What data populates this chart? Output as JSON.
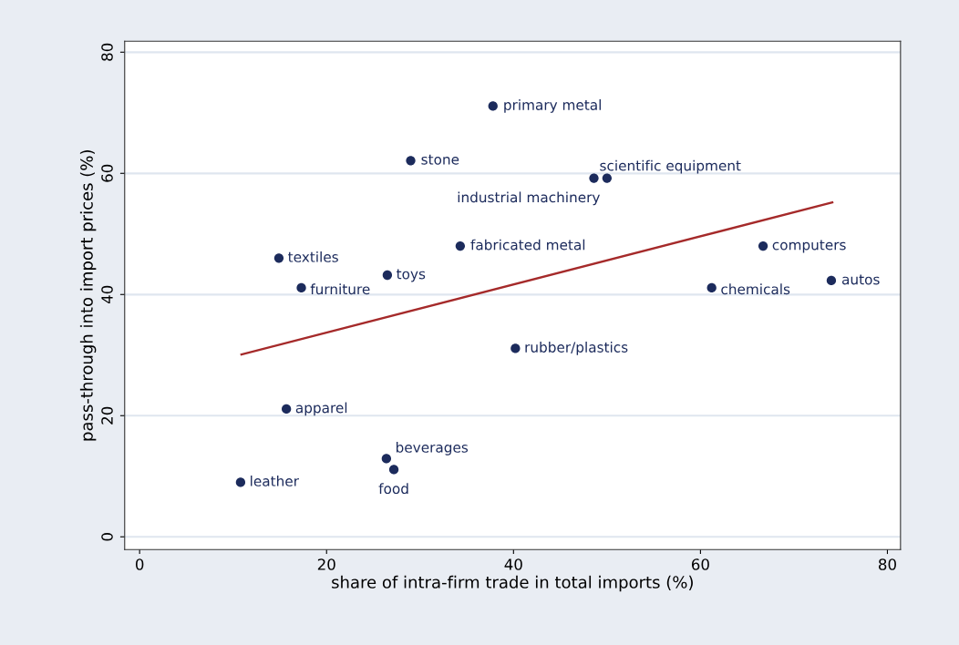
{
  "chart_data": {
    "type": "scatter",
    "xlabel": "share of intra-firm trade in total imports (%)",
    "ylabel": "pass-through into import prices (%)",
    "xlim": [
      -1.6,
      81.4
    ],
    "ylim": [
      -2.1,
      81.8
    ],
    "xticks": [
      0,
      20,
      40,
      60,
      80
    ],
    "yticks": [
      0,
      20,
      40,
      60,
      80
    ],
    "grid": "y",
    "marker": "circle",
    "series": [
      {
        "color": "#1c2b5c",
        "x": [
          37.8,
          29.0,
          48.6,
          50.0,
          34.3,
          14.9,
          26.5,
          17.3,
          66.7,
          61.2,
          74.0,
          40.2,
          15.7,
          26.4,
          27.2,
          10.8
        ],
        "values": [
          71.1,
          62.1,
          59.2,
          59.2,
          48.0,
          46.0,
          43.2,
          41.1,
          48.0,
          41.1,
          42.3,
          31.1,
          21.1,
          12.9,
          11.1,
          9.0
        ]
      },
      {
        "type": "line",
        "color": "#a52a2a",
        "marker": "none",
        "line_style": "solid",
        "x": [
          10.9,
          74.1
        ],
        "values": [
          30.1,
          55.2
        ]
      }
    ],
    "annotations": [
      {
        "text": "primary metal",
        "x": 37.8,
        "y": 71.1
      },
      {
        "text": "stone",
        "x": 29.0,
        "y": 62.1
      },
      {
        "text": "industrial machinery",
        "x": 48.6,
        "y": 59.2
      },
      {
        "text": "scientific equipment",
        "x": 50.0,
        "y": 59.2
      },
      {
        "text": "fabricated metal",
        "x": 34.3,
        "y": 48.0
      },
      {
        "text": "textiles",
        "x": 14.9,
        "y": 46.0
      },
      {
        "text": "toys",
        "x": 26.5,
        "y": 43.2
      },
      {
        "text": "furniture",
        "x": 17.3,
        "y": 41.1
      },
      {
        "text": "computers",
        "x": 66.7,
        "y": 48.0
      },
      {
        "text": "chemicals",
        "x": 61.2,
        "y": 41.1
      },
      {
        "text": "autos",
        "x": 74.0,
        "y": 42.3
      },
      {
        "text": "rubber/plastics",
        "x": 40.2,
        "y": 31.1
      },
      {
        "text": "apparel",
        "x": 15.7,
        "y": 21.1
      },
      {
        "text": "beverages",
        "x": 26.4,
        "y": 12.9
      },
      {
        "text": "food",
        "x": 27.2,
        "y": 11.1
      },
      {
        "text": "leather",
        "x": 10.8,
        "y": 9.0
      }
    ]
  }
}
